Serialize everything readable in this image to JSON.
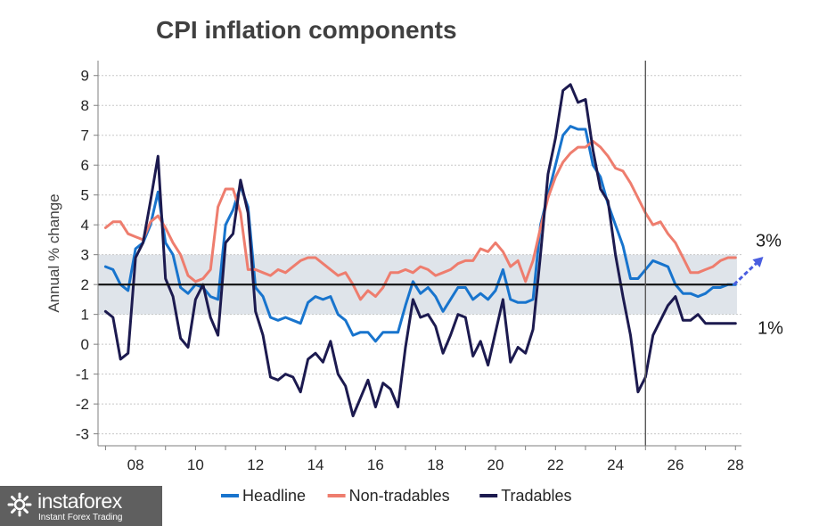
{
  "chart_data": {
    "type": "line",
    "title": "CPI inflation components",
    "ylabel": "Annual % change",
    "xlabel": "",
    "xlim": [
      2006.75,
      2028.2
    ],
    "ylim": [
      -3.4,
      9.5
    ],
    "x_ticks": [
      2008,
      2010,
      2012,
      2014,
      2016,
      2018,
      2020,
      2022,
      2024,
      2026,
      2028
    ],
    "x_tick_labels": [
      "08",
      "10",
      "12",
      "14",
      "16",
      "18",
      "20",
      "22",
      "24",
      "26",
      "28"
    ],
    "y_ticks": [
      -3,
      -2,
      -1,
      0,
      1,
      2,
      3,
      4,
      5,
      6,
      7,
      8,
      9
    ],
    "y_tick_labels": [
      "-3",
      "-2",
      "-1",
      "0",
      "1",
      "2",
      "3",
      "4",
      "5",
      "6",
      "7",
      "8",
      "9"
    ],
    "target_band": [
      1,
      3
    ],
    "target_line": 2,
    "forecast_start": 2025.0,
    "grid": true,
    "legend_position": "bottom",
    "annotations": {
      "upper": {
        "text": "3%",
        "y": 3
      },
      "lower": {
        "text": "1%",
        "y": 1
      }
    },
    "series": [
      {
        "name": "Headline",
        "color": "#1874cd",
        "x": [
          2007.0,
          2007.25,
          2007.5,
          2007.75,
          2008.0,
          2008.25,
          2008.5,
          2008.75,
          2009.0,
          2009.25,
          2009.5,
          2009.75,
          2010.0,
          2010.25,
          2010.5,
          2010.75,
          2011.0,
          2011.25,
          2011.5,
          2011.75,
          2012.0,
          2012.25,
          2012.5,
          2012.75,
          2013.0,
          2013.25,
          2013.5,
          2013.75,
          2014.0,
          2014.25,
          2014.5,
          2014.75,
          2015.0,
          2015.25,
          2015.5,
          2015.75,
          2016.0,
          2016.25,
          2016.5,
          2016.75,
          2017.0,
          2017.25,
          2017.5,
          2017.75,
          2018.0,
          2018.25,
          2018.5,
          2018.75,
          2019.0,
          2019.25,
          2019.5,
          2019.75,
          2020.0,
          2020.25,
          2020.5,
          2020.75,
          2021.0,
          2021.25,
          2021.5,
          2021.75,
          2022.0,
          2022.25,
          2022.5,
          2022.75,
          2023.0,
          2023.25,
          2023.5,
          2023.75,
          2024.0,
          2024.25,
          2024.5,
          2024.75,
          2025.0,
          2025.25,
          2025.5,
          2025.75,
          2026.0,
          2026.25,
          2026.5,
          2026.75,
          2027.0,
          2027.25,
          2027.5,
          2027.75,
          2028.0
        ],
        "values": [
          2.6,
          2.5,
          2.0,
          1.8,
          3.2,
          3.4,
          4.0,
          5.1,
          3.4,
          3.0,
          1.9,
          1.7,
          2.0,
          1.9,
          1.6,
          1.5,
          4.0,
          4.5,
          5.3,
          4.6,
          1.9,
          1.6,
          0.9,
          0.8,
          0.9,
          0.8,
          0.7,
          1.4,
          1.6,
          1.5,
          1.6,
          1.0,
          0.8,
          0.3,
          0.4,
          0.4,
          0.1,
          0.4,
          0.4,
          0.4,
          1.3,
          2.1,
          1.7,
          1.9,
          1.6,
          1.1,
          1.5,
          1.9,
          1.9,
          1.5,
          1.7,
          1.5,
          1.8,
          2.5,
          1.5,
          1.4,
          1.4,
          1.5,
          4.0,
          5.0,
          6.0,
          7.0,
          7.3,
          7.2,
          7.2,
          6.0,
          5.6,
          4.7,
          4.0,
          3.3,
          2.2,
          2.2,
          2.5,
          2.8,
          2.7,
          2.6,
          2.0,
          1.7,
          1.7,
          1.6,
          1.7,
          1.9,
          1.9,
          2.0,
          2.0
        ]
      },
      {
        "name": "Non-tradables",
        "color": "#ee7d6e",
        "x": [
          2007.0,
          2007.25,
          2007.5,
          2007.75,
          2008.0,
          2008.25,
          2008.5,
          2008.75,
          2009.0,
          2009.25,
          2009.5,
          2009.75,
          2010.0,
          2010.25,
          2010.5,
          2010.75,
          2011.0,
          2011.25,
          2011.5,
          2011.75,
          2012.0,
          2012.25,
          2012.5,
          2012.75,
          2013.0,
          2013.25,
          2013.5,
          2013.75,
          2014.0,
          2014.25,
          2014.5,
          2014.75,
          2015.0,
          2015.25,
          2015.5,
          2015.75,
          2016.0,
          2016.25,
          2016.5,
          2016.75,
          2017.0,
          2017.25,
          2017.5,
          2017.75,
          2018.0,
          2018.25,
          2018.5,
          2018.75,
          2019.0,
          2019.25,
          2019.5,
          2019.75,
          2020.0,
          2020.25,
          2020.5,
          2020.75,
          2021.0,
          2021.25,
          2021.5,
          2021.75,
          2022.0,
          2022.25,
          2022.5,
          2022.75,
          2023.0,
          2023.25,
          2023.5,
          2023.75,
          2024.0,
          2024.25,
          2024.5,
          2024.75,
          2025.0,
          2025.25,
          2025.5,
          2025.75,
          2026.0,
          2026.25,
          2026.5,
          2026.75,
          2027.0,
          2027.25,
          2027.5,
          2027.75,
          2028.0
        ],
        "values": [
          3.9,
          4.1,
          4.1,
          3.7,
          3.6,
          3.5,
          4.1,
          4.3,
          3.9,
          3.4,
          3.0,
          2.3,
          2.1,
          2.2,
          2.5,
          4.6,
          5.2,
          5.2,
          4.4,
          2.5,
          2.5,
          2.4,
          2.3,
          2.5,
          2.4,
          2.6,
          2.8,
          2.9,
          2.9,
          2.7,
          2.5,
          2.3,
          2.4,
          2.0,
          1.5,
          1.8,
          1.6,
          1.9,
          2.4,
          2.4,
          2.5,
          2.4,
          2.6,
          2.5,
          2.3,
          2.4,
          2.5,
          2.7,
          2.8,
          2.8,
          3.2,
          3.1,
          3.4,
          3.1,
          2.6,
          2.8,
          2.1,
          2.8,
          3.9,
          4.9,
          5.6,
          6.1,
          6.4,
          6.6,
          6.6,
          6.8,
          6.6,
          6.3,
          5.9,
          5.8,
          5.4,
          4.9,
          4.4,
          4.0,
          4.1,
          3.7,
          3.4,
          2.9,
          2.4,
          2.4,
          2.5,
          2.6,
          2.8,
          2.9,
          2.9
        ]
      },
      {
        "name": "Tradables",
        "color": "#1c1a4f",
        "x": [
          2007.0,
          2007.25,
          2007.5,
          2007.75,
          2008.0,
          2008.25,
          2008.5,
          2008.75,
          2009.0,
          2009.25,
          2009.5,
          2009.75,
          2010.0,
          2010.25,
          2010.5,
          2010.75,
          2011.0,
          2011.25,
          2011.5,
          2011.75,
          2012.0,
          2012.25,
          2012.5,
          2012.75,
          2013.0,
          2013.25,
          2013.5,
          2013.75,
          2014.0,
          2014.25,
          2014.5,
          2014.75,
          2015.0,
          2015.25,
          2015.5,
          2015.75,
          2016.0,
          2016.25,
          2016.5,
          2016.75,
          2017.0,
          2017.25,
          2017.5,
          2017.75,
          2018.0,
          2018.25,
          2018.5,
          2018.75,
          2019.0,
          2019.25,
          2019.5,
          2019.75,
          2020.0,
          2020.25,
          2020.5,
          2020.75,
          2021.0,
          2021.25,
          2021.5,
          2021.75,
          2022.0,
          2022.25,
          2022.5,
          2022.75,
          2023.0,
          2023.25,
          2023.5,
          2023.75,
          2024.0,
          2024.25,
          2024.5,
          2024.75,
          2025.0,
          2025.25,
          2025.5,
          2025.75,
          2026.0,
          2026.25,
          2026.5,
          2026.75,
          2027.0,
          2027.25,
          2027.5,
          2027.75,
          2028.0
        ],
        "values": [
          1.1,
          0.9,
          -0.5,
          -0.3,
          2.9,
          3.4,
          4.8,
          6.3,
          2.2,
          1.6,
          0.2,
          -0.1,
          1.5,
          2.0,
          0.9,
          0.3,
          3.4,
          3.7,
          5.5,
          4.4,
          1.1,
          0.3,
          -1.1,
          -1.2,
          -1.0,
          -1.1,
          -1.6,
          -0.5,
          -0.3,
          -0.6,
          0.1,
          -1.0,
          -1.4,
          -2.4,
          -1.8,
          -1.2,
          -2.1,
          -1.3,
          -1.5,
          -2.1,
          -0.1,
          1.5,
          0.9,
          1.0,
          0.6,
          -0.3,
          0.3,
          1.0,
          0.9,
          -0.4,
          0.1,
          -0.7,
          0.4,
          1.5,
          -0.6,
          -0.1,
          -0.3,
          0.5,
          3.0,
          5.7,
          6.9,
          8.5,
          8.7,
          8.1,
          8.2,
          6.5,
          5.2,
          4.8,
          3.0,
          1.6,
          0.3,
          -1.6,
          -1.1,
          0.3,
          0.8,
          1.3,
          1.6,
          0.8,
          0.8,
          1.0,
          0.7,
          0.7,
          0.7,
          0.7,
          0.7
        ]
      }
    ]
  },
  "logo": {
    "name": "instaforex",
    "tagline": "Instant Forex Trading"
  }
}
